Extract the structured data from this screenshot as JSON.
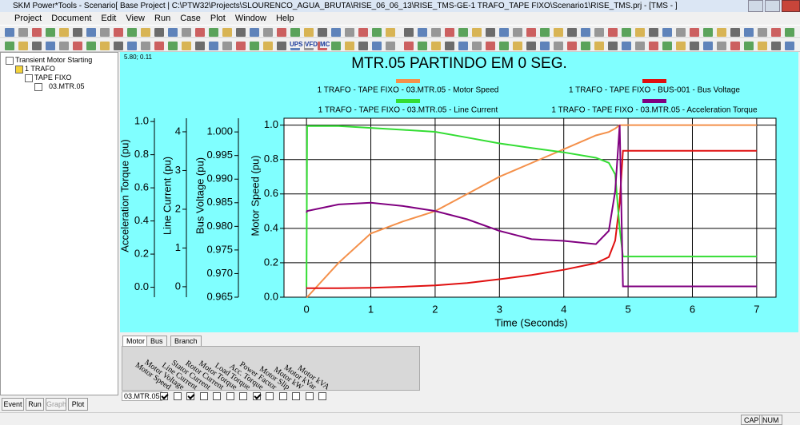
{
  "window": {
    "title": "SKM Power*Tools - Scenario[ Base Project | C:\\PTW32\\Projects\\SLOURENCO_AGUA_BRUTA\\RISE_06_06_13\\RISE_TMS-GE-1 TRAFO_TAPE FIXO\\Scenario1\\RISE_TMS.prj - [TMS - ]"
  },
  "menu": [
    "Project",
    "Document",
    "Edit",
    "View",
    "Run",
    "Case",
    "Plot",
    "Window",
    "Help"
  ],
  "toolbar_labels": [
    "UPS",
    "VFD",
    "MC"
  ],
  "tree": [
    "Transient Motor Starting",
    "1 TRAFO",
    "TAPE FIXO",
    "03.MTR.05"
  ],
  "cursor_readout": "5.80; 0.11",
  "chart_data": {
    "type": "line",
    "title": "MTR.05 PARTINDO EM 0 SEG.",
    "x_label": "Time (Seconds)",
    "xlim": [
      -0.35,
      7.3
    ],
    "xticks": [
      0,
      1,
      2,
      3,
      4,
      5,
      6,
      7
    ],
    "grid": true,
    "y_axes": [
      {
        "label": "Acceleration Torque (pu)",
        "ylim": [
          -0.06,
          1.02
        ],
        "yticks": [
          {
            "value": 0,
            "label": "0.0"
          },
          0.2,
          0.4,
          0.6,
          0.8,
          {
            "value": 1,
            "label": "1.0"
          }
        ]
      },
      {
        "label": "Line Current (pu)",
        "ylim": [
          -0.27,
          4.35
        ],
        "yticks": [
          0,
          1,
          2,
          3,
          4
        ]
      },
      {
        "label": "Bus Voltage (pu)",
        "ylim": [
          0.965,
          1.0029
        ],
        "yticks": [
          0.965,
          {
            "value": 0.97,
            "label": "0.970"
          },
          0.975,
          {
            "value": 0.98,
            "label": "0.980"
          },
          0.985,
          {
            "value": 0.99,
            "label": "0.990"
          },
          0.995,
          {
            "value": 1,
            "label": "1.000"
          }
        ]
      },
      {
        "label": "Motor Speed (pu)",
        "ylim": [
          0,
          1.04
        ],
        "yticks": [
          {
            "value": 0,
            "label": "0.0"
          },
          0.2,
          0.4,
          0.6,
          0.8,
          {
            "value": 1,
            "label": "1.0"
          }
        ]
      }
    ],
    "x": [
      0,
      0.01,
      0.5,
      1,
      1.5,
      2,
      2.5,
      3,
      3.5,
      4,
      4.5,
      4.7,
      4.8,
      4.87,
      4.92,
      5,
      6,
      7
    ],
    "series": [
      {
        "name": "1 TRAFO - TAPE FIXO - 03.MTR.05 - Motor Speed",
        "color": "#f4904a",
        "axis": 3,
        "values": [
          0,
          0,
          0.2,
          0.37,
          0.44,
          0.5,
          0.6,
          0.7,
          0.78,
          0.86,
          0.94,
          0.96,
          0.98,
          1,
          1,
          1,
          1,
          1
        ]
      },
      {
        "name": "1 TRAFO - TAPE FIXO - BUS-001 - Bus Voltage",
        "color": "#e01010",
        "axis": 2,
        "values": [
          0.9669,
          0.9669,
          0.9669,
          0.967,
          0.9672,
          0.9675,
          0.968,
          0.9688,
          0.9697,
          0.9708,
          0.9722,
          0.9735,
          0.977,
          0.985,
          0.996,
          0.996,
          0.996,
          0.996
        ]
      },
      {
        "name": "1 TRAFO - TAPE FIXO - 03.MTR.05 - Line Current",
        "color": "#33dd33",
        "axis": 1,
        "values": [
          0,
          4.15,
          4.15,
          4.1,
          4.05,
          4,
          3.85,
          3.7,
          3.58,
          3.47,
          3.33,
          3.2,
          2.9,
          1.5,
          0.78,
          0.78,
          0.78,
          0.78
        ]
      },
      {
        "name": "1 TRAFO - TAPE FIXO - 03.MTR.05 - Acceleration Torque",
        "color": "#800080",
        "axis": 0,
        "values": [
          0.45,
          0.46,
          0.5,
          0.51,
          0.49,
          0.46,
          0.41,
          0.34,
          0.29,
          0.28,
          0.26,
          0.34,
          0.58,
          0.98,
          0.005,
          0.005,
          0.005,
          0.005
        ]
      }
    ]
  },
  "tabs": [
    "Motor",
    "Bus",
    "Branch"
  ],
  "table": {
    "columns": [
      "Motor Speed",
      "Motor Voltage",
      "Line Current",
      "Stator Current",
      "Rotor Current",
      "Motor Torque",
      "Load Torque",
      "Acc. Torque",
      "Power Factor",
      "Motor Slip",
      "Motor kW",
      "Motor kVar",
      "Motor kVA"
    ],
    "rows": [
      {
        "name": "03.MTR.05",
        "checked": [
          true,
          false,
          true,
          false,
          false,
          false,
          false,
          true,
          false,
          false,
          false,
          false,
          false
        ]
      }
    ]
  },
  "buttons": [
    "Event",
    "Run",
    "Graph",
    "Plot"
  ],
  "status": [
    "CAP",
    "NUM"
  ]
}
